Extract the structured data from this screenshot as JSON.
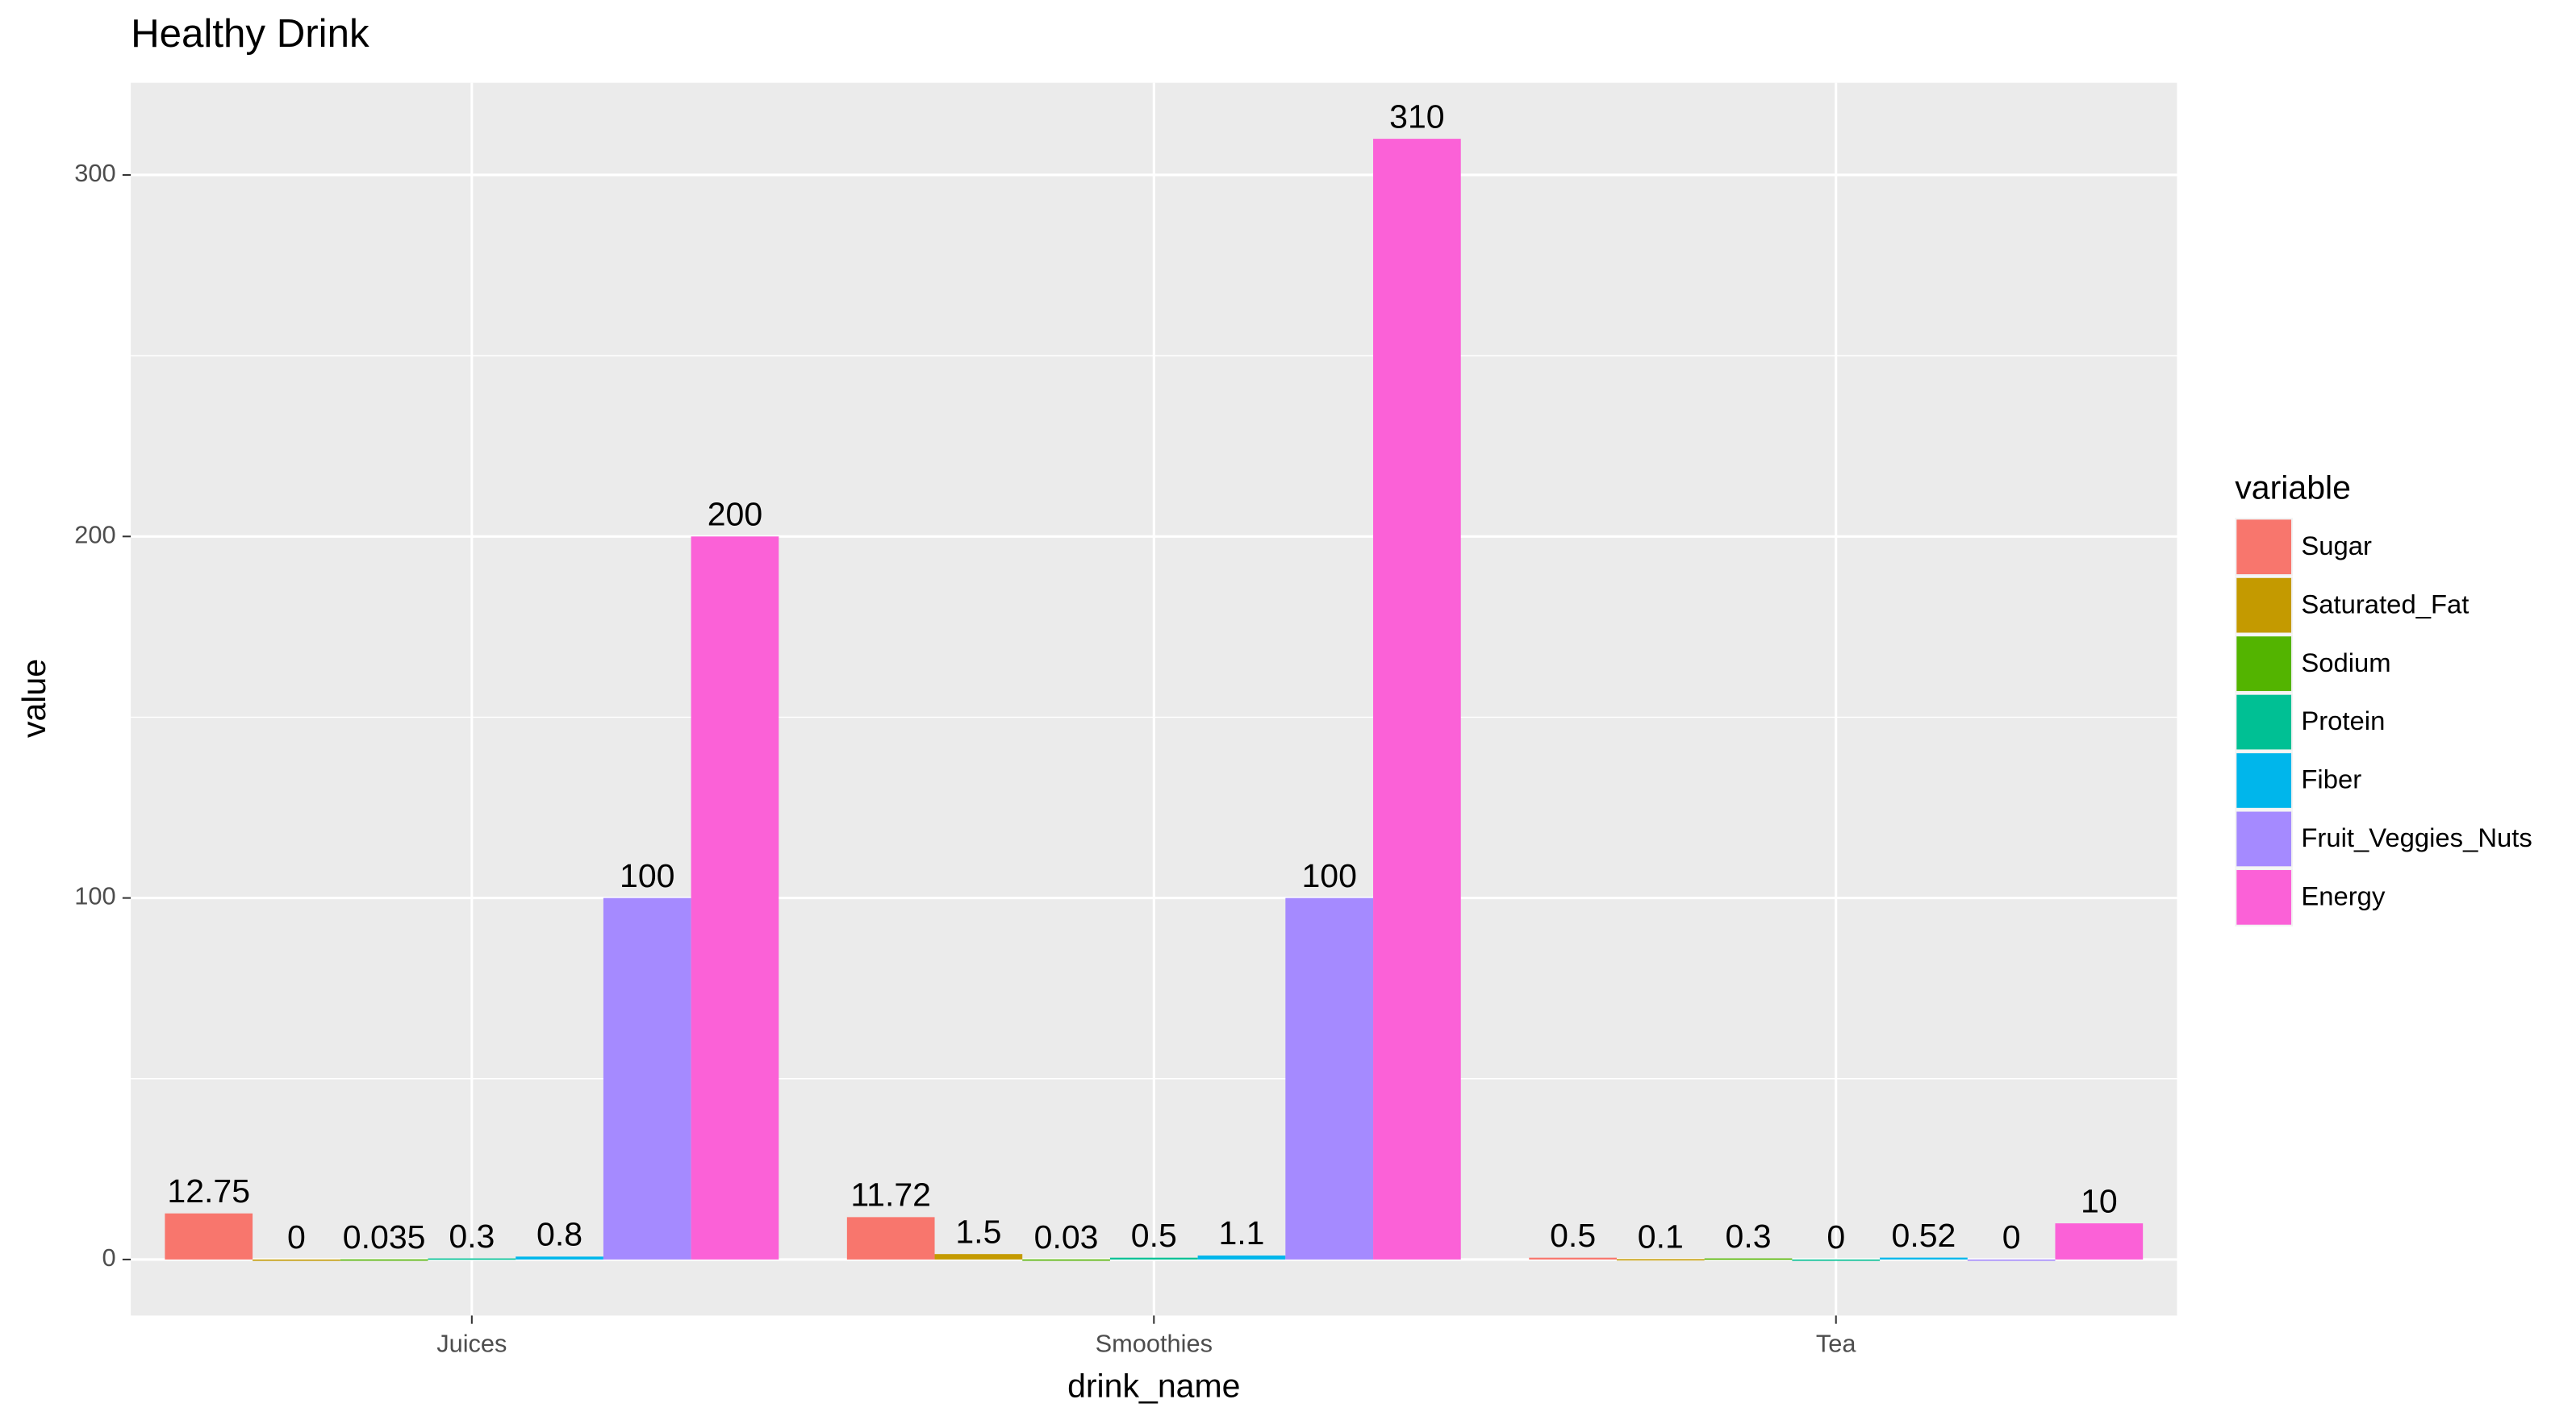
{
  "chart_data": {
    "type": "bar",
    "title": "Healthy Drink",
    "x_label": "drink_name",
    "y_label": "value",
    "legend_title": "variable",
    "categories": [
      "Juices",
      "Smoothies",
      "Tea"
    ],
    "series": [
      {
        "name": "Sugar",
        "color": "#F8766D",
        "values": [
          12.75,
          11.72,
          0.5
        ]
      },
      {
        "name": "Saturated_Fat",
        "color": "#C49A00",
        "values": [
          0,
          1.5,
          0.1
        ]
      },
      {
        "name": "Sodium",
        "color": "#53B400",
        "values": [
          0.035,
          0.03,
          0.3
        ]
      },
      {
        "name": "Protein",
        "color": "#00C094",
        "values": [
          0.3,
          0.5,
          0
        ]
      },
      {
        "name": "Fiber",
        "color": "#00B6EB",
        "values": [
          0.8,
          1.1,
          0.52
        ]
      },
      {
        "name": "Fruit_Veggies_Nuts",
        "color": "#A58AFF",
        "values": [
          100,
          100,
          0
        ]
      },
      {
        "name": "Energy",
        "color": "#FB61D7",
        "values": [
          200,
          310,
          10
        ]
      }
    ],
    "ylim": [
      -15.5,
      325.5
    ],
    "yticks": [
      0,
      100,
      200,
      300
    ],
    "grid": true,
    "legend": "right"
  }
}
